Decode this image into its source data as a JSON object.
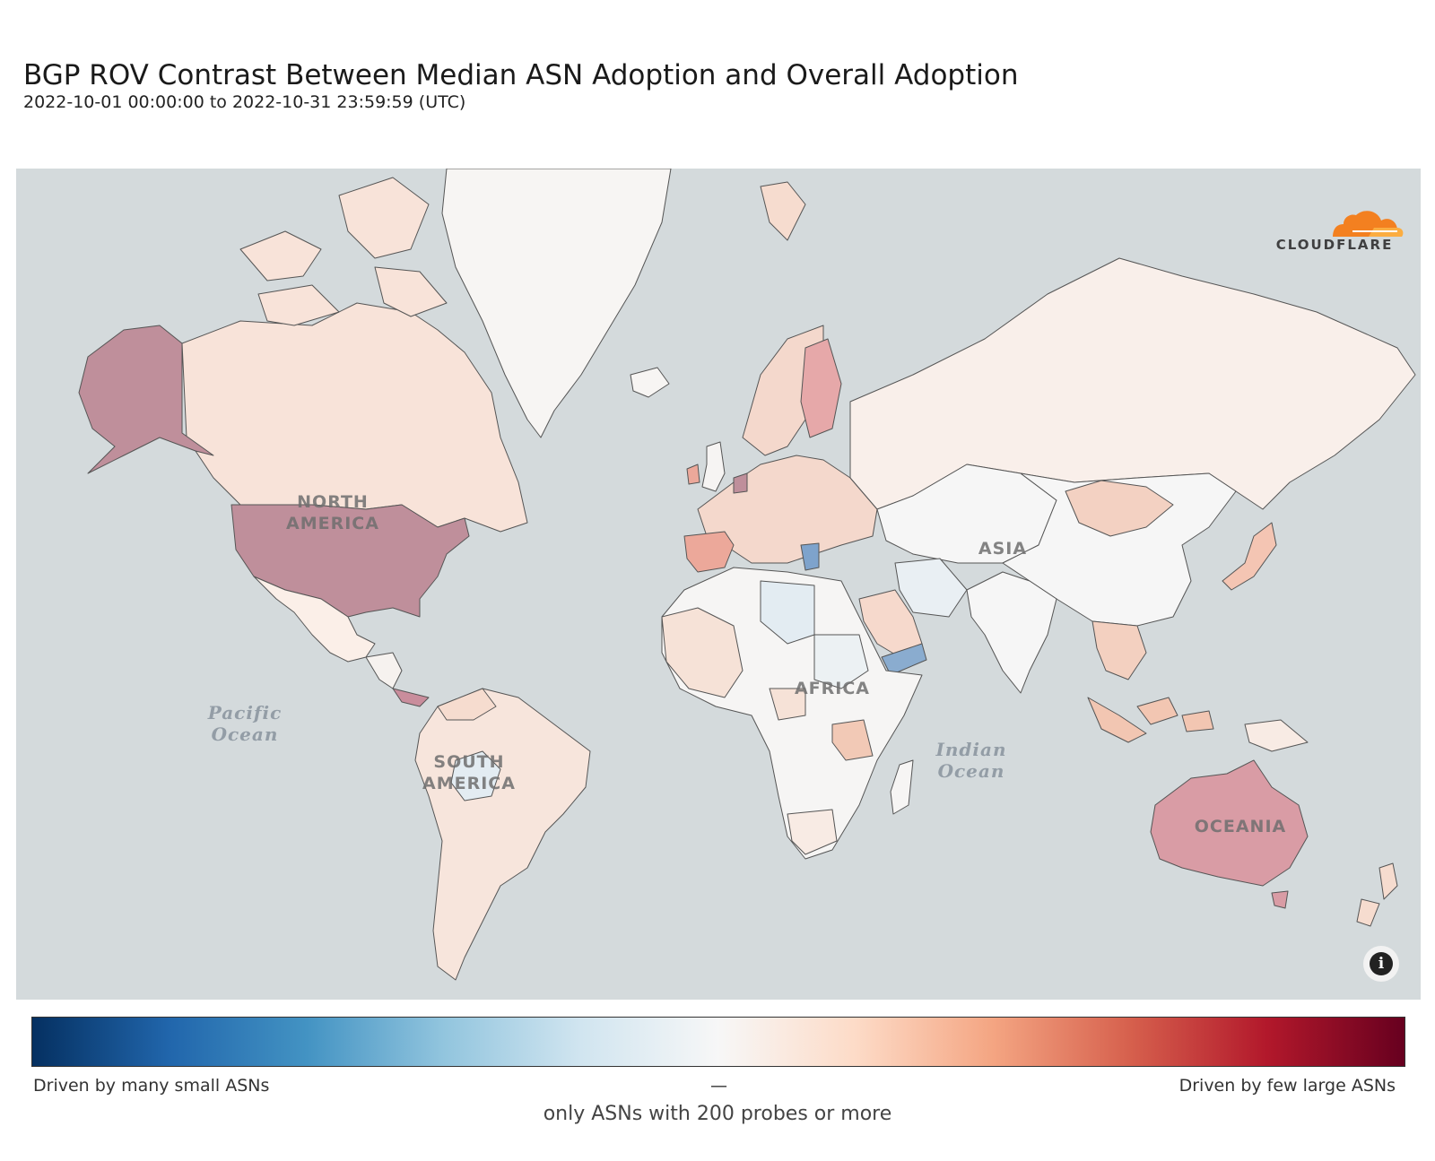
{
  "title": "BGP ROV Contrast Between Median ASN Adoption and Overall Adoption",
  "subtitle": "2022-10-01 00:00:00 to 2022-10-31 23:59:59 (UTC)",
  "logo": {
    "text": "CLOUDFLARE"
  },
  "map": {
    "background_color": "#d4dadc",
    "region_labels": [
      {
        "id": "na",
        "text": "NORTH\nAMERICA"
      },
      {
        "id": "sa",
        "text": "SOUTH\nAMERICA"
      },
      {
        "id": "af",
        "text": "AFRICA"
      },
      {
        "id": "as",
        "text": "ASIA"
      },
      {
        "id": "oc",
        "text": "OCEANIA"
      }
    ],
    "ocean_labels": [
      {
        "id": "pacific",
        "text": "Pacific\nOcean"
      },
      {
        "id": "indian",
        "text": "Indian\nOcean"
      }
    ],
    "region_colors": {
      "usa_alaska": "#bf8f9b",
      "canada": "#f8e3d9",
      "greenland": "#f7f5f3",
      "mexico": "#fbefe8",
      "central_america": "#f6f2ef",
      "costa_rica_panama": "#c98d9c",
      "south_america": "#f7e5dc",
      "bolivia": "#e3ecf2",
      "venezuela": "#f6dccf",
      "africa": "#f6f5f4",
      "libya": "#e3ecf2",
      "sudan": "#ecf1f3",
      "west_africa": "#f6e2d7",
      "tanzania": "#f2c9b6",
      "south_africa": "#f8ebe4",
      "europe": "#f4d8cc",
      "finland": "#e6a8a9",
      "uk_ireland": "#f6f4f3",
      "spain": "#eca89a",
      "netherlands": "#bf8f9b",
      "greece": "#7ea3cc",
      "russia": "#f9efea",
      "china_central_asia": "#f6f6f6",
      "iran": "#e9eff3",
      "saudi_arabia": "#f6d9cc",
      "yemen": "#8aaccf",
      "mongolia": "#f3d1c2",
      "japan": "#f4c5b3",
      "india": "#f6f6f6",
      "southeast_asia": "#f3d0c0",
      "indonesia": "#f2c6b2",
      "australia": "#d99ca5",
      "new_zealand": "#f6dccf"
    }
  },
  "legend": {
    "left_label": "Driven by many small ASNs",
    "mid_label": "—",
    "right_label": "Driven by few large ASNs",
    "colors": [
      "#053061",
      "#2166ac",
      "#4393c3",
      "#92c5de",
      "#d1e5f0",
      "#f7f7f7",
      "#fddbc7",
      "#f4a582",
      "#d6604d",
      "#b2182b",
      "#67001f"
    ]
  },
  "note": "only ASNs with 200 probes or more"
}
